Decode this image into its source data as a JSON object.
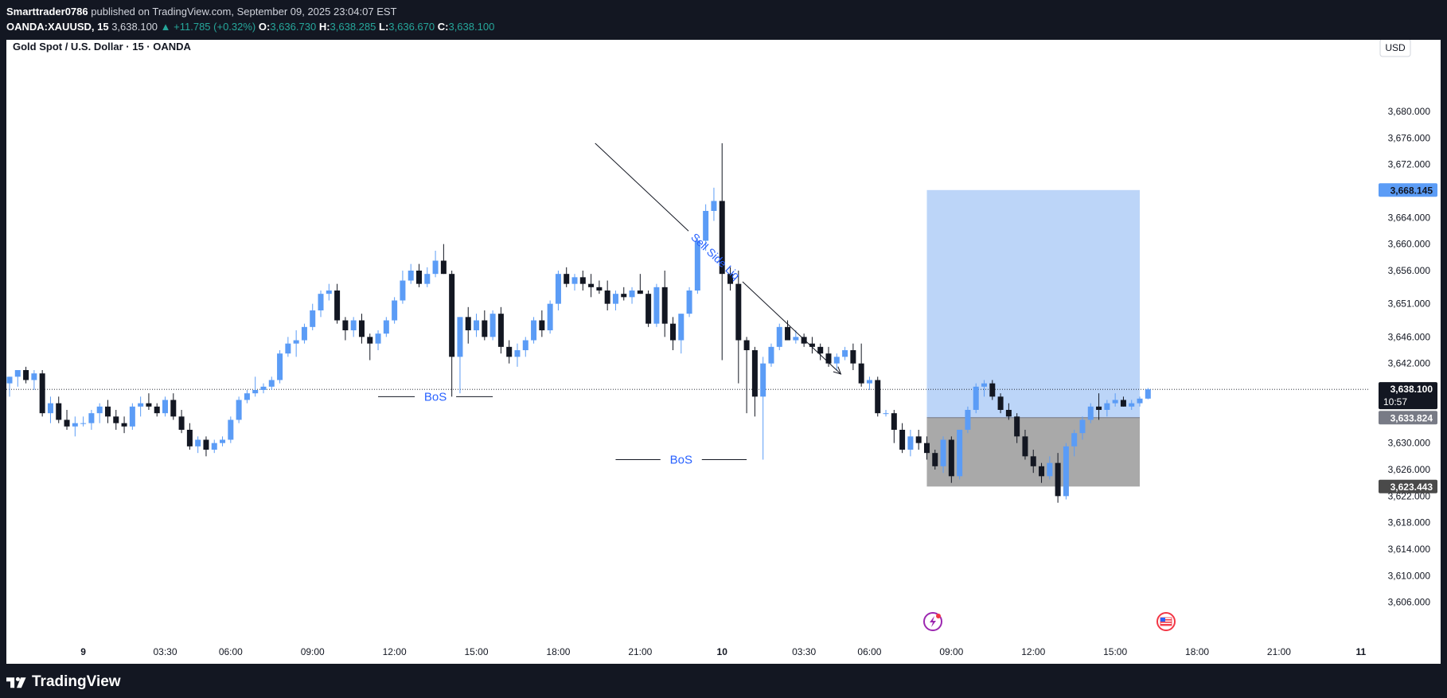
{
  "header": {
    "author": "Smarttrader0786",
    "published_text": "published on TradingView.com, September 09, 2025 23:04:07 EST",
    "symbol": "OANDA:XAUUSD, 15",
    "last": "3,638.100",
    "change": "▲ +11.785 (+0.32%)",
    "o_label": "O:",
    "o_value": "3,636.730",
    "h_label": "H:",
    "h_value": "3,638.285",
    "l_label": "L:",
    "l_value": "3,636.670",
    "c_label": "C:",
    "c_value": "3,638.100"
  },
  "chart": {
    "title": "Gold Spot / U.S. Dollar · 15 · OANDA",
    "currency_button": "USD"
  },
  "footer": {
    "brand": "TradingView"
  },
  "colors": {
    "bull": "#5b9cf6",
    "bear": "#131722",
    "target_zone": "#bcd5f8",
    "stop_zone": "#a9a9a9",
    "annotation": "#2962ff"
  },
  "chart_data": {
    "type": "candlestick",
    "title": "Gold Spot / U.S. Dollar · 15 · OANDA",
    "y_axis": {
      "ticks": [
        3680,
        3676,
        3672,
        3668,
        3664,
        3660,
        3656,
        3651,
        3646,
        3642,
        3638,
        3634,
        3630,
        3626,
        3622,
        3618,
        3614,
        3610,
        3606
      ],
      "tick_labels": [
        "3,680.000",
        "3,676.000",
        "3,672.000",
        "3,668.000",
        "3,664.000",
        "3,660.000",
        "3,656.000",
        "3,651.000",
        "3,646.000",
        "3,642.000",
        "3,638.000",
        "3,634.000",
        "3,630.000",
        "3,626.000",
        "3,622.000",
        "3,618.000",
        "3,614.000",
        "3,610.000",
        "3,606.000"
      ],
      "range": [
        3602,
        3686
      ]
    },
    "x_axis": {
      "labels": [
        {
          "idx": 9,
          "text": "9",
          "bold": true
        },
        {
          "idx": 19,
          "text": "03:30"
        },
        {
          "idx": 27,
          "text": "06:00"
        },
        {
          "idx": 37,
          "text": "09:00"
        },
        {
          "idx": 47,
          "text": "12:00"
        },
        {
          "idx": 57,
          "text": "15:00"
        },
        {
          "idx": 67,
          "text": "18:00"
        },
        {
          "idx": 77,
          "text": "21:00"
        },
        {
          "idx": 87,
          "text": "10",
          "bold": true
        },
        {
          "idx": 97,
          "text": "03:30"
        },
        {
          "idx": 105,
          "text": "06:00"
        },
        {
          "idx": 115,
          "text": "09:00"
        },
        {
          "idx": 125,
          "text": "12:00"
        },
        {
          "idx": 135,
          "text": "15:00"
        },
        {
          "idx": 145,
          "text": "18:00"
        },
        {
          "idx": 155,
          "text": "21:00"
        },
        {
          "idx": 165,
          "text": "11",
          "bold": true
        }
      ]
    },
    "price_labels": [
      {
        "value": 3668.145,
        "text": "3,668.145",
        "kind": "target"
      },
      {
        "value": 3638.1,
        "text": "3,638.100",
        "kind": "last",
        "sub": "10:57"
      },
      {
        "value": 3633.824,
        "text": "3,633.824",
        "kind": "entry"
      },
      {
        "value": 3623.443,
        "text": "3,623.443",
        "kind": "stop"
      }
    ],
    "last_price": 3638.1,
    "position": {
      "type": "long",
      "entry": 3633.824,
      "target": 3668.145,
      "stop": 3623.443,
      "start_idx": 112,
      "end_idx": 138
    },
    "annotations": [
      {
        "type": "bos",
        "text": "BoS",
        "idx_start": 45,
        "idx_end": 59,
        "price": 3637.0
      },
      {
        "type": "bos",
        "text": "BoS",
        "idx_start": 74,
        "idx_end": 90,
        "price": 3627.5
      },
      {
        "type": "arrow",
        "text": "Sell Side Liq",
        "idx_start": 71.5,
        "price_start": 3675.2,
        "idx_end": 101.5,
        "price_end": 3640.4
      }
    ],
    "candles": [
      [
        3639.0,
        3640.0,
        3637.0,
        3640.0
      ],
      [
        3640.0,
        3641.0,
        3638.5,
        3641.0
      ],
      [
        3641.0,
        3641.5,
        3639.0,
        3639.5
      ],
      [
        3639.5,
        3641.0,
        3638.0,
        3640.5
      ],
      [
        3640.5,
        3641.0,
        3634.0,
        3634.5
      ],
      [
        3634.5,
        3637.0,
        3633.0,
        3636.0
      ],
      [
        3636.0,
        3637.0,
        3633.0,
        3633.5
      ],
      [
        3633.5,
        3635.0,
        3632.0,
        3632.5
      ],
      [
        3632.5,
        3634.0,
        3631.0,
        3633.0
      ],
      [
        3633.0,
        3634.0,
        3632.5,
        3633.0
      ],
      [
        3633.0,
        3635.0,
        3632.0,
        3634.5
      ],
      [
        3634.5,
        3636.0,
        3633.0,
        3635.5
      ],
      [
        3635.5,
        3636.5,
        3633.0,
        3634.0
      ],
      [
        3634.0,
        3635.0,
        3632.0,
        3633.0
      ],
      [
        3633.0,
        3634.0,
        3631.5,
        3632.5
      ],
      [
        3632.5,
        3636.0,
        3632.0,
        3635.5
      ],
      [
        3635.5,
        3637.0,
        3634.0,
        3636.0
      ],
      [
        3636.0,
        3637.5,
        3635.0,
        3635.5
      ],
      [
        3635.5,
        3636.0,
        3634.0,
        3634.5
      ],
      [
        3634.5,
        3637.0,
        3634.0,
        3636.5
      ],
      [
        3636.5,
        3637.5,
        3633.5,
        3634.0
      ],
      [
        3634.0,
        3635.0,
        3631.5,
        3632.0
      ],
      [
        3632.0,
        3633.0,
        3629.0,
        3629.5
      ],
      [
        3629.5,
        3631.0,
        3628.5,
        3630.5
      ],
      [
        3630.5,
        3631.0,
        3628.0,
        3629.0
      ],
      [
        3629.0,
        3630.5,
        3628.5,
        3630.0
      ],
      [
        3630.0,
        3631.0,
        3629.5,
        3630.5
      ],
      [
        3630.5,
        3634.0,
        3630.0,
        3633.5
      ],
      [
        3633.5,
        3637.0,
        3633.0,
        3636.5
      ],
      [
        3636.5,
        3638.0,
        3636.0,
        3637.5
      ],
      [
        3637.5,
        3640.0,
        3637.0,
        3638.0
      ],
      [
        3638.0,
        3639.0,
        3637.5,
        3638.5
      ],
      [
        3638.5,
        3640.0,
        3638.0,
        3639.5
      ],
      [
        3639.5,
        3644.0,
        3639.0,
        3643.5
      ],
      [
        3643.5,
        3646.0,
        3643.0,
        3645.0
      ],
      [
        3645.0,
        3647.0,
        3643.0,
        3645.5
      ],
      [
        3645.5,
        3648.0,
        3645.0,
        3647.5
      ],
      [
        3647.5,
        3651.0,
        3647.0,
        3650.0
      ],
      [
        3650.0,
        3653.0,
        3649.0,
        3652.5
      ],
      [
        3652.5,
        3654.0,
        3651.5,
        3653.0
      ],
      [
        3653.0,
        3654.0,
        3648.0,
        3648.5
      ],
      [
        3648.5,
        3649.0,
        3645.5,
        3647.0
      ],
      [
        3647.0,
        3649.0,
        3646.0,
        3648.5
      ],
      [
        3648.5,
        3649.5,
        3645.0,
        3646.0
      ],
      [
        3646.0,
        3646.5,
        3642.5,
        3645.0
      ],
      [
        3645.0,
        3647.0,
        3644.0,
        3646.5
      ],
      [
        3646.5,
        3649.0,
        3646.0,
        3648.5
      ],
      [
        3648.5,
        3652.0,
        3648.0,
        3651.5
      ],
      [
        3651.5,
        3656.0,
        3651.0,
        3654.5
      ],
      [
        3654.5,
        3657.0,
        3654.0,
        3656.0
      ],
      [
        3656.0,
        3657.0,
        3653.5,
        3654.0
      ],
      [
        3654.0,
        3656.5,
        3653.5,
        3655.5
      ],
      [
        3655.5,
        3659.0,
        3655.0,
        3657.5
      ],
      [
        3657.5,
        3660.0,
        3655.5,
        3655.5
      ],
      [
        3655.5,
        3656.0,
        3637.0,
        3643.0
      ],
      [
        3643.0,
        3649.0,
        3637.5,
        3649.0
      ],
      [
        3649.0,
        3650.5,
        3645.0,
        3647.0
      ],
      [
        3647.0,
        3649.5,
        3646.0,
        3648.5
      ],
      [
        3648.5,
        3650.0,
        3645.5,
        3646.0
      ],
      [
        3646.0,
        3650.0,
        3645.5,
        3649.5
      ],
      [
        3649.5,
        3650.5,
        3643.5,
        3644.5
      ],
      [
        3644.5,
        3645.5,
        3642.0,
        3643.0
      ],
      [
        3643.0,
        3645.0,
        3641.5,
        3644.0
      ],
      [
        3644.0,
        3646.0,
        3643.0,
        3645.5
      ],
      [
        3645.5,
        3649.0,
        3645.0,
        3648.5
      ],
      [
        3648.5,
        3650.0,
        3646.0,
        3647.0
      ],
      [
        3647.0,
        3651.5,
        3646.5,
        3651.0
      ],
      [
        3651.0,
        3656.0,
        3650.0,
        3655.5
      ],
      [
        3655.5,
        3656.5,
        3653.5,
        3654.0
      ],
      [
        3654.0,
        3655.5,
        3653.0,
        3655.0
      ],
      [
        3655.0,
        3656.0,
        3653.0,
        3654.0
      ],
      [
        3654.0,
        3655.5,
        3652.0,
        3653.5
      ],
      [
        3653.5,
        3654.5,
        3652.5,
        3653.0
      ],
      [
        3653.0,
        3654.5,
        3650.0,
        3651.0
      ],
      [
        3651.0,
        3653.0,
        3650.0,
        3652.5
      ],
      [
        3652.5,
        3653.5,
        3651.5,
        3652.0
      ],
      [
        3652.0,
        3653.5,
        3651.0,
        3653.0
      ],
      [
        3653.0,
        3655.5,
        3652.5,
        3652.5
      ],
      [
        3652.5,
        3653.0,
        3647.5,
        3648.0
      ],
      [
        3648.0,
        3654.0,
        3647.5,
        3653.5
      ],
      [
        3653.5,
        3656.0,
        3646.0,
        3648.0
      ],
      [
        3648.0,
        3649.0,
        3644.0,
        3645.5
      ],
      [
        3645.5,
        3649.5,
        3643.5,
        3649.5
      ],
      [
        3649.5,
        3653.5,
        3649.0,
        3653.0
      ],
      [
        3653.0,
        3661.0,
        3652.5,
        3660.5
      ],
      [
        3660.5,
        3666.0,
        3659.0,
        3665.0
      ],
      [
        3665.0,
        3668.5,
        3663.5,
        3666.5
      ],
      [
        3666.5,
        3675.2,
        3642.5,
        3655.5
      ],
      [
        3655.5,
        3656.5,
        3653.0,
        3654.0
      ],
      [
        3654.0,
        3656.0,
        3639.0,
        3645.5
      ],
      [
        3645.5,
        3646.0,
        3634.5,
        3644.0
      ],
      [
        3644.0,
        3644.5,
        3634.0,
        3637.0
      ],
      [
        3637.0,
        3643.0,
        3627.5,
        3642.0
      ],
      [
        3642.0,
        3645.0,
        3641.5,
        3644.5
      ],
      [
        3644.5,
        3648.0,
        3644.0,
        3647.5
      ],
      [
        3647.5,
        3648.5,
        3645.5,
        3645.5
      ],
      [
        3645.5,
        3647.0,
        3645.0,
        3646.0
      ],
      [
        3646.0,
        3646.5,
        3644.5,
        3645.0
      ],
      [
        3645.0,
        3646.0,
        3643.5,
        3644.5
      ],
      [
        3644.5,
        3645.0,
        3642.5,
        3643.5
      ],
      [
        3643.5,
        3644.5,
        3641.5,
        3642.0
      ],
      [
        3642.0,
        3643.5,
        3641.0,
        3643.0
      ],
      [
        3643.0,
        3644.5,
        3642.5,
        3644.0
      ],
      [
        3644.0,
        3645.0,
        3641.0,
        3642.0
      ],
      [
        3642.0,
        3645.0,
        3638.5,
        3639.0
      ],
      [
        3639.0,
        3640.0,
        3638.0,
        3639.5
      ],
      [
        3639.5,
        3640.0,
        3634.0,
        3634.5
      ],
      [
        3634.5,
        3635.0,
        3634.0,
        3634.5
      ],
      [
        3634.5,
        3635.0,
        3630.0,
        3632.0
      ],
      [
        3632.0,
        3633.0,
        3628.5,
        3629.0
      ],
      [
        3629.0,
        3632.0,
        3628.0,
        3631.0
      ],
      [
        3631.0,
        3632.0,
        3629.0,
        3630.0
      ],
      [
        3630.0,
        3631.0,
        3627.5,
        3628.5
      ],
      [
        3628.5,
        3629.0,
        3626.0,
        3626.5
      ],
      [
        3626.5,
        3631.0,
        3625.5,
        3630.5
      ],
      [
        3630.5,
        3631.0,
        3624.0,
        3625.0
      ],
      [
        3625.0,
        3632.0,
        3624.5,
        3632.0
      ],
      [
        3632.0,
        3635.5,
        3631.5,
        3635.0
      ],
      [
        3635.0,
        3639.0,
        3634.5,
        3638.5
      ],
      [
        3638.5,
        3639.5,
        3637.0,
        3639.0
      ],
      [
        3639.0,
        3639.5,
        3636.5,
        3637.0
      ],
      [
        3637.0,
        3637.5,
        3634.5,
        3635.0
      ],
      [
        3635.0,
        3636.0,
        3633.5,
        3634.0
      ],
      [
        3634.0,
        3634.5,
        3630.0,
        3631.0
      ],
      [
        3631.0,
        3632.0,
        3627.5,
        3628.0
      ],
      [
        3628.0,
        3629.0,
        3625.5,
        3626.5
      ],
      [
        3626.5,
        3627.0,
        3624.0,
        3625.0
      ],
      [
        3625.0,
        3628.0,
        3624.5,
        3627.0
      ],
      [
        3627.0,
        3628.5,
        3621.0,
        3622.0
      ],
      [
        3622.0,
        3630.0,
        3621.5,
        3629.5
      ],
      [
        3629.5,
        3632.0,
        3628.0,
        3631.5
      ],
      [
        3631.5,
        3634.0,
        3630.5,
        3633.5
      ],
      [
        3633.5,
        3636.0,
        3633.0,
        3635.5
      ],
      [
        3635.5,
        3637.5,
        3633.5,
        3635.0
      ],
      [
        3635.0,
        3636.5,
        3634.0,
        3636.0
      ],
      [
        3636.0,
        3637.5,
        3635.5,
        3636.5
      ],
      [
        3636.5,
        3637.0,
        3635.5,
        3635.5
      ],
      [
        3635.5,
        3636.5,
        3635.0,
        3636.0
      ],
      [
        3636.0,
        3637.0,
        3635.5,
        3636.7
      ],
      [
        3636.7,
        3638.3,
        3636.6,
        3638.1
      ]
    ]
  }
}
